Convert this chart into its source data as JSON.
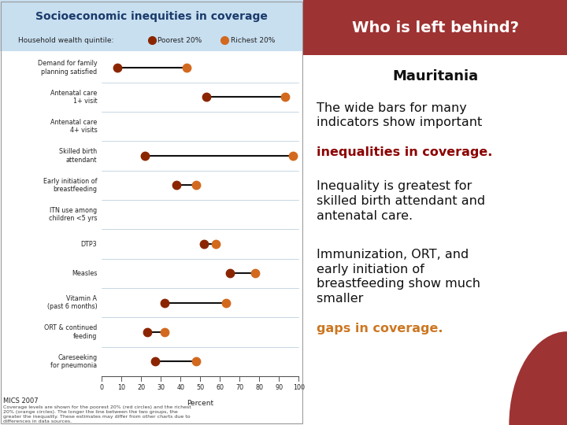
{
  "title": "Socioeconomic inequities in coverage",
  "legend_label_poorest": "Poorest 20%",
  "legend_label_richest": "Richest 20%",
  "legend_prefix": "Household wealth quintile:",
  "xlabel": "Percent",
  "footer": "MICS 2007",
  "footnote": "Coverage levels are shown for the poorest 20% (red circles) and the richest\n20% (orange circles). The longer the line between the two groups, the\ngreater the inequality. These estimates may differ from other charts due to\ndifferences in data sources.",
  "categories": [
    "Demand for family\nplanning satisfied",
    "Antenatal care\n1+ visit",
    "Antenatal care\n4+ visits",
    "Skilled birth\nattendant",
    "Early initiation of\nbreastfeeding",
    "ITN use among\nchildren <5 yrs",
    "DTP3",
    "Measles",
    "Vitamin A\n(past 6 months)",
    "ORT & continued\nfeeding",
    "Careseeking\nfor pneumonia"
  ],
  "poorest": [
    8,
    53,
    null,
    22,
    38,
    null,
    52,
    65,
    32,
    23,
    27
  ],
  "richest": [
    43,
    93,
    null,
    97,
    48,
    null,
    58,
    78,
    63,
    32,
    48
  ],
  "poorest_color": "#8B2500",
  "richest_color": "#D2691E",
  "bg_color": "#daeaf5",
  "header_bg": "#c8dff0",
  "header_title_color": "#1a3a6b",
  "right_header_bg": "#9e3333",
  "right_title": "Who is left behind?",
  "right_country": "Mauritania",
  "highlight_color": "#8B0000",
  "highlight_color2": "#CC7722",
  "xticks": [
    0,
    10,
    20,
    30,
    40,
    50,
    60,
    70,
    80,
    90,
    100
  ]
}
